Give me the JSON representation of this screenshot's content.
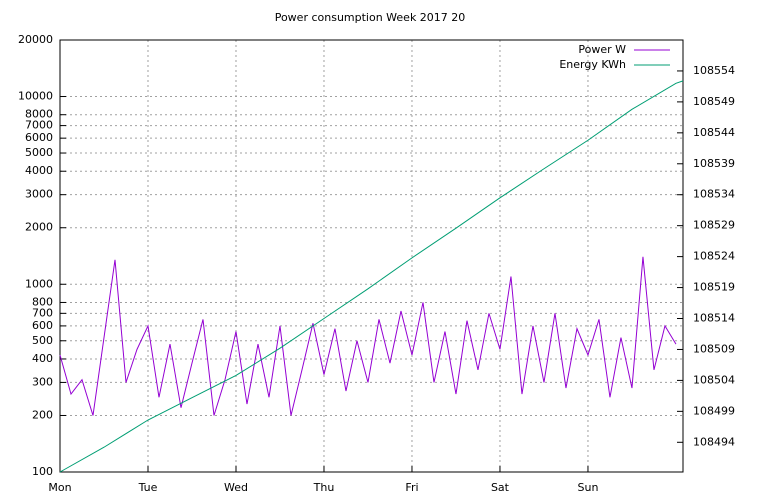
{
  "chart_data": {
    "type": "line",
    "title": "Power consumption Week 2017 20",
    "log_y": true,
    "grid": true,
    "legend": "top-right",
    "xlim": [
      0,
      7.08
    ],
    "xticks": [
      {
        "value": 0,
        "label": "Mon"
      },
      {
        "value": 1,
        "label": "Tue"
      },
      {
        "value": 2,
        "label": "Wed"
      },
      {
        "value": 3,
        "label": "Thu"
      },
      {
        "value": 4,
        "label": "Fri"
      },
      {
        "value": 5,
        "label": "Sat"
      },
      {
        "value": 6,
        "label": "Sun"
      }
    ],
    "ylim": [
      100,
      20000
    ],
    "yticks": [
      100,
      200,
      300,
      400,
      500,
      600,
      700,
      800,
      1000,
      2000,
      3000,
      4000,
      5000,
      6000,
      7000,
      8000,
      10000,
      20000
    ],
    "y2lim": [
      108489.2,
      108559
    ],
    "y2ticks": [
      108494,
      108499,
      108504,
      108509,
      108514,
      108519,
      108524,
      108529,
      108534,
      108539,
      108544,
      108549,
      108554
    ],
    "series": [
      {
        "name": "Power W",
        "color": "#9400d3",
        "x": [
          0,
          0.125,
          0.25,
          0.375,
          0.5,
          0.625,
          0.75,
          0.875,
          1,
          1.125,
          1.25,
          1.375,
          1.5,
          1.625,
          1.75,
          1.875,
          2,
          2.125,
          2.25,
          2.375,
          2.5,
          2.625,
          2.75,
          2.875,
          3,
          3.125,
          3.25,
          3.375,
          3.5,
          3.625,
          3.75,
          3.875,
          4,
          4.125,
          4.25,
          4.375,
          4.5,
          4.625,
          4.75,
          4.875,
          5,
          5.125,
          5.25,
          5.375,
          5.5,
          5.625,
          5.75,
          5.875,
          6,
          6.125,
          6.25,
          6.375,
          6.5,
          6.625,
          6.75,
          6.875,
          7
        ],
        "values": [
          420,
          260,
          310,
          200,
          520,
          1350,
          300,
          450,
          600,
          250,
          480,
          220,
          380,
          650,
          200,
          310,
          560,
          230,
          480,
          250,
          600,
          200,
          350,
          620,
          330,
          580,
          270,
          500,
          300,
          650,
          380,
          720,
          420,
          800,
          300,
          560,
          260,
          640,
          350,
          700,
          450,
          1100,
          260,
          600,
          300,
          700,
          280,
          580,
          420,
          650,
          250,
          520,
          280,
          1400,
          350,
          600,
          480
        ]
      },
      {
        "name": "Energy KWh",
        "color": "#009e73",
        "axis": "y2",
        "x": [
          0,
          0.5,
          1,
          1.5,
          2,
          2.5,
          3,
          3.5,
          4,
          4.5,
          5,
          5.5,
          6,
          6.5,
          7,
          7.08
        ],
        "values": [
          108489.2,
          108493.2,
          108497.6,
          108501.2,
          108504.8,
          108509.2,
          108514,
          108518.8,
          108523.8,
          108528.6,
          108533.5,
          108538.2,
          108542.8,
          108547.8,
          108552,
          108552.4
        ]
      }
    ]
  }
}
